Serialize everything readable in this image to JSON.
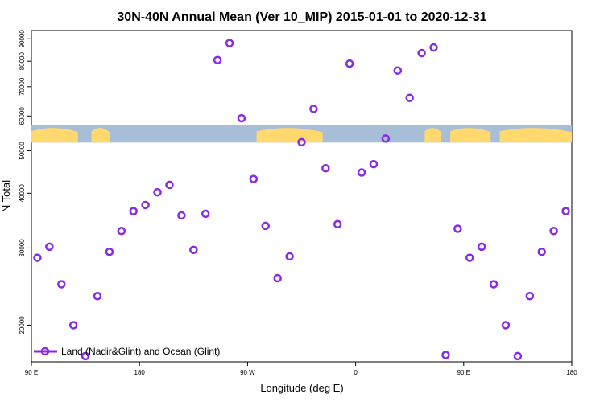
{
  "chart_data": {
    "type": "scatter",
    "title": "30N-40N Annual Mean (Ver 10_MIP)   2015-01-01 to 2020-12-31",
    "xlabel": "Longitude (deg E)",
    "ylabel": "N Total",
    "x_axis": {
      "range_deg_east": [
        90,
        450
      ],
      "ticks": [
        {
          "value": 90,
          "label": "90 E"
        },
        {
          "value": 180,
          "label": "180"
        },
        {
          "value": 270,
          "label": "90 W"
        },
        {
          "value": 360,
          "label": "0"
        },
        {
          "value": 450,
          "label": "90 E"
        },
        {
          "value": 540,
          "label": "180"
        }
      ],
      "xlim": [
        90,
        540
      ]
    },
    "y_axis": {
      "scale": "log",
      "ylim": [
        16500,
        94000
      ],
      "ticks": [
        {
          "value": 20000,
          "label": "20000"
        },
        {
          "value": 30000,
          "label": "30000"
        },
        {
          "value": 40000,
          "label": "40000"
        },
        {
          "value": 50000,
          "label": "50000"
        },
        {
          "value": 60000,
          "label": "60000"
        },
        {
          "value": 70000,
          "label": "70000"
        },
        {
          "value": 80000,
          "label": "80000"
        },
        {
          "value": 90000,
          "label": "90000"
        }
      ]
    },
    "series": [
      {
        "name": "Land (Nadir&Glint) and Ocean (Glint)",
        "color": "#8A2BE2",
        "marker": "open-circle",
        "x": [
          95,
          105,
          115,
          125,
          135,
          145,
          155,
          165,
          175,
          185,
          195,
          205,
          215,
          225,
          235,
          245,
          255,
          265,
          275,
          285,
          295,
          305,
          315,
          325,
          335,
          345,
          355,
          365,
          375,
          385,
          395,
          405,
          415,
          425,
          435,
          445,
          455,
          465,
          475,
          485,
          495,
          505,
          515,
          525,
          535
        ],
        "y": [
          28500,
          30200,
          24800,
          20000,
          17000,
          23300,
          29400,
          32800,
          36400,
          37600,
          40200,
          41800,
          35600,
          29700,
          35900,
          80500,
          88000,
          59300,
          43100,
          33700,
          25600,
          28700,
          52300,
          62300,
          45600,
          34000,
          79000,
          44600,
          46600,
          53300,
          76200,
          66000,
          83500,
          86000,
          17100,
          33200,
          28500,
          30200,
          24800,
          20000,
          17000,
          23300,
          29400,
          32800,
          36400
        ]
      }
    ],
    "map_strip": {
      "y_range": [
        52200,
        57200
      ],
      "ocean_color": "#A8BDD8",
      "land_color": "#FFD86E"
    },
    "legend": {
      "position": "bottom-left",
      "label": "Land (Nadir&Glint) and Ocean (Glint)"
    },
    "grid": false
  }
}
